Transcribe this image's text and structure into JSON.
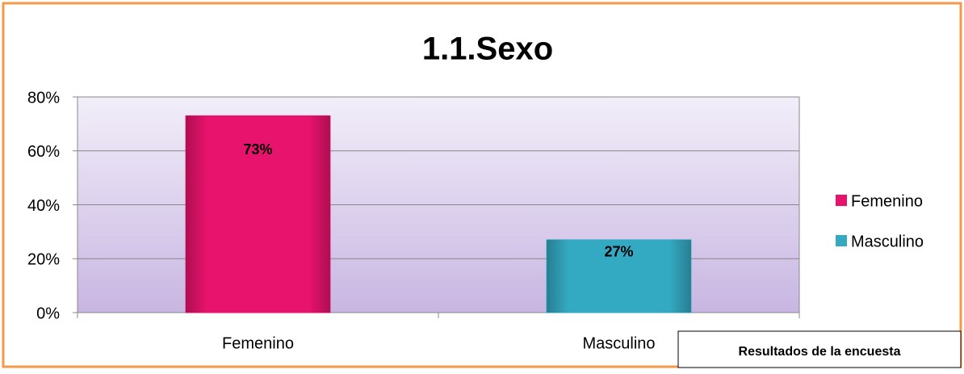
{
  "chart_data": {
    "type": "bar",
    "title": "1.1.Sexo",
    "categories": [
      "Femenino",
      "Masculino"
    ],
    "values": [
      73,
      27
    ],
    "value_labels": [
      "73%",
      "27%"
    ],
    "colors": [
      "#e8136d",
      "#34a9c2"
    ],
    "ylim": [
      0,
      80
    ],
    "yticks": [
      {
        "value": 0,
        "label": "0%"
      },
      {
        "value": 20,
        "label": "20%"
      },
      {
        "value": 40,
        "label": "40%"
      },
      {
        "value": 60,
        "label": "60%"
      },
      {
        "value": 80,
        "label": "80%"
      }
    ],
    "grid": true,
    "legend": "right",
    "annotation": "Resultados de la encuesta"
  }
}
